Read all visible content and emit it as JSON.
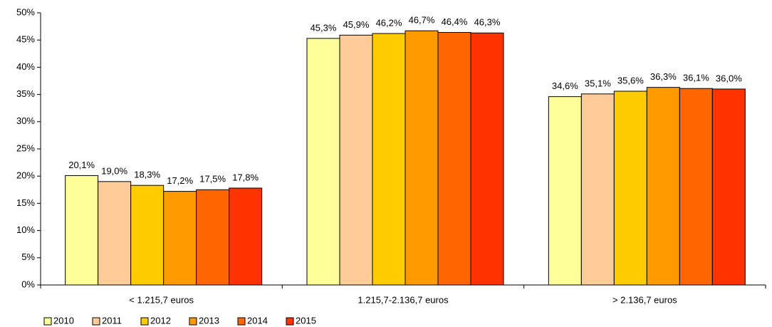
{
  "chart_data": {
    "type": "bar",
    "categories": [
      "< 1.215,7 euros",
      "1.215,7-2.136,7 euros",
      "> 2.136,7 euros"
    ],
    "series": [
      {
        "name": "2010",
        "color": "#ffff99",
        "values": [
          20.1,
          45.3,
          34.6
        ],
        "value_labels": [
          "20,1%",
          "45,3%",
          "34,6%"
        ]
      },
      {
        "name": "2011",
        "color": "#ffcc99",
        "values": [
          19.0,
          45.9,
          35.1
        ],
        "value_labels": [
          "19,0%",
          "45,9%",
          "35,1%"
        ]
      },
      {
        "name": "2012",
        "color": "#ffcc00",
        "values": [
          18.3,
          46.2,
          35.6
        ],
        "value_labels": [
          "18,3%",
          "46,2%",
          "35,6%"
        ]
      },
      {
        "name": "2013",
        "color": "#ff9900",
        "values": [
          17.2,
          46.7,
          36.3
        ],
        "value_labels": [
          "17,2%",
          "46,7%",
          "36,3%"
        ]
      },
      {
        "name": "2014",
        "color": "#ff6600",
        "values": [
          17.5,
          46.4,
          36.1
        ],
        "value_labels": [
          "17,5%",
          "46,4%",
          "36,1%"
        ]
      },
      {
        "name": "2015",
        "color": "#ff3300",
        "values": [
          17.8,
          46.3,
          36.0
        ],
        "value_labels": [
          "17,8%",
          "46,3%",
          "36,0%"
        ]
      }
    ],
    "ylim": [
      0,
      50
    ],
    "yticks": [
      {
        "value": 0,
        "label": "0%"
      },
      {
        "value": 5,
        "label": "5%"
      },
      {
        "value": 10,
        "label": "10%"
      },
      {
        "value": 15,
        "label": "15%"
      },
      {
        "value": 20,
        "label": "20%"
      },
      {
        "value": 25,
        "label": "25%"
      },
      {
        "value": 30,
        "label": "30%"
      },
      {
        "value": 35,
        "label": "35%"
      },
      {
        "value": 40,
        "label": "40%"
      },
      {
        "value": 45,
        "label": "45%"
      },
      {
        "value": 50,
        "label": "50%"
      }
    ],
    "grid": false,
    "legend": "bottom-left"
  }
}
